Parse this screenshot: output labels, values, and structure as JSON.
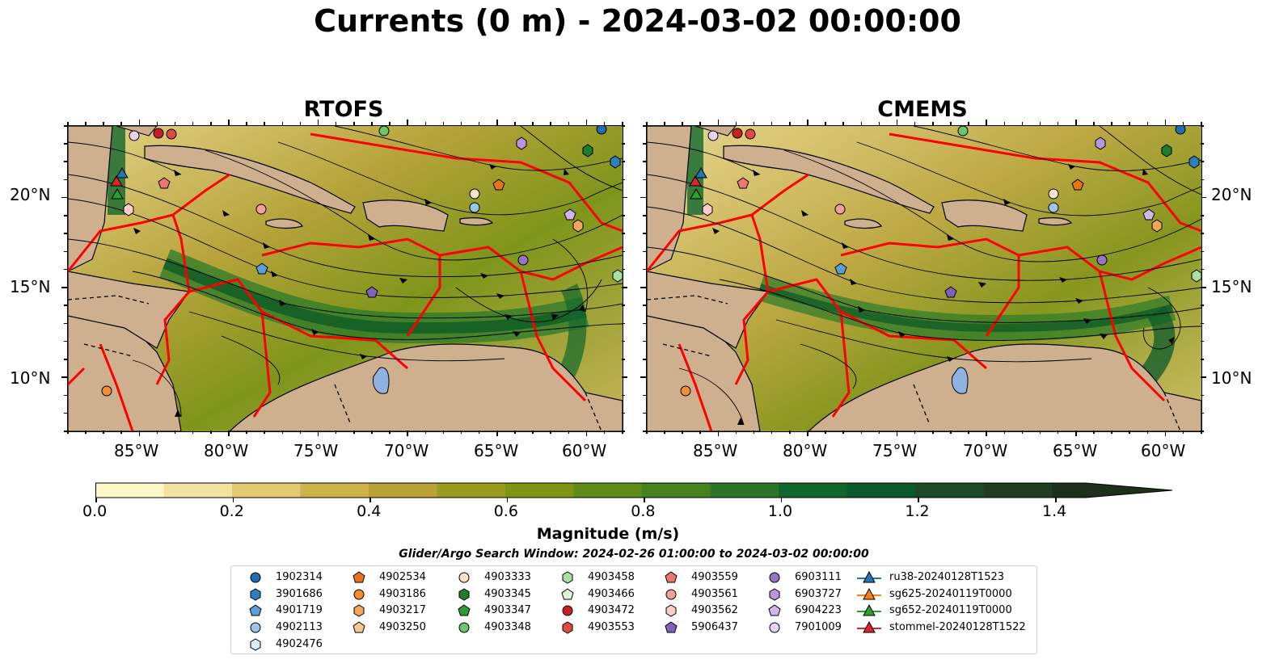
{
  "title": "Currents (0 m) - 2024-03-02 00:00:00",
  "panels": [
    {
      "title": "RTOFS"
    },
    {
      "title": "CMEMS"
    }
  ],
  "map": {
    "lon_range": [
      -89,
      -58
    ],
    "lat_range": [
      7,
      24
    ],
    "lon_ticks": [
      "85°W",
      "80°W",
      "75°W",
      "70°W",
      "65°W",
      "60°W"
    ],
    "lat_ticks": [
      "20°N",
      "15°N",
      "10°N"
    ],
    "land_color": "#cfb08e",
    "eez_color": "#ff0000",
    "lake_color": "#8fb2e0"
  },
  "colorbar": {
    "label": "Magnitude (m/s)",
    "ticks": [
      "0.0",
      "0.2",
      "0.4",
      "0.6",
      "0.8",
      "1.0",
      "1.2",
      "1.4"
    ],
    "range": [
      0,
      1.5
    ],
    "extend": "max",
    "colors": [
      "#fff8c8",
      "#f2e4a0",
      "#e3ca72",
      "#cfb24a",
      "#b9a235",
      "#9c9a1f",
      "#7f9412",
      "#5f8c17",
      "#43821d",
      "#2c7428",
      "#11662e",
      "#0b592b",
      "#1c4a25",
      "#203d20",
      "#1c301a"
    ]
  },
  "window_text": "Glider/Argo Search Window: 2024-02-26 01:00:00 to 2024-03-02 00:00:00",
  "legend": {
    "columns": [
      [
        {
          "label": "1902314",
          "marker": "circle",
          "color": "#1f6fb0"
        },
        {
          "label": "3901686",
          "marker": "hexagon",
          "color": "#2d7fc0"
        },
        {
          "label": "4901719",
          "marker": "pentagon",
          "color": "#5a9fd8"
        },
        {
          "label": "4902113",
          "marker": "circle",
          "color": "#9cc5e8"
        },
        {
          "label": "4902476",
          "marker": "hexagon",
          "color": "#dcecf8"
        }
      ],
      [
        {
          "label": "4902534",
          "marker": "pentagon",
          "color": "#e8731a"
        },
        {
          "label": "4903186",
          "marker": "circle",
          "color": "#f08e30"
        },
        {
          "label": "4903217",
          "marker": "hexagon",
          "color": "#f5a55a"
        },
        {
          "label": "4903250",
          "marker": "pentagon",
          "color": "#f8c88e"
        }
      ],
      [
        {
          "label": "4903333",
          "marker": "circle",
          "color": "#fde3c8"
        },
        {
          "label": "4903345",
          "marker": "hexagon",
          "color": "#1e7e2e"
        },
        {
          "label": "4903347",
          "marker": "pentagon",
          "color": "#2f9a3c"
        },
        {
          "label": "4903348",
          "marker": "circle",
          "color": "#6cc46c"
        }
      ],
      [
        {
          "label": "4903458",
          "marker": "hexagon",
          "color": "#a8e0a0"
        },
        {
          "label": "4903466",
          "marker": "pentagon",
          "color": "#e0f5da"
        },
        {
          "label": "4903472",
          "marker": "circle",
          "color": "#c8201e"
        },
        {
          "label": "4903553",
          "marker": "hexagon",
          "color": "#e04a40"
        }
      ],
      [
        {
          "label": "4903559",
          "marker": "pentagon",
          "color": "#ea7870"
        },
        {
          "label": "4903561",
          "marker": "circle",
          "color": "#f3a09c"
        },
        {
          "label": "4903562",
          "marker": "hexagon",
          "color": "#f9cdca"
        },
        {
          "label": "5906437",
          "marker": "pentagon",
          "color": "#8062b8"
        }
      ],
      [
        {
          "label": "6903111",
          "marker": "circle",
          "color": "#9a72c8"
        },
        {
          "label": "6903727",
          "marker": "hexagon",
          "color": "#b896dc"
        },
        {
          "label": "6904223",
          "marker": "pentagon",
          "color": "#cfb6ec"
        },
        {
          "label": "7901009",
          "marker": "circle",
          "color": "#e8d4f6"
        }
      ],
      [
        {
          "label": "ru38-20240128T1523",
          "marker": "triangle",
          "color": "#1f77b4"
        },
        {
          "label": "sg625-20240119T0000",
          "marker": "triangle",
          "color": "#ff7f0e"
        },
        {
          "label": "sg652-20240119T0000",
          "marker": "triangle",
          "color": "#2ca02c"
        },
        {
          "label": "stommel-20240128T1522",
          "marker": "triangle",
          "color": "#d62728"
        }
      ]
    ]
  }
}
